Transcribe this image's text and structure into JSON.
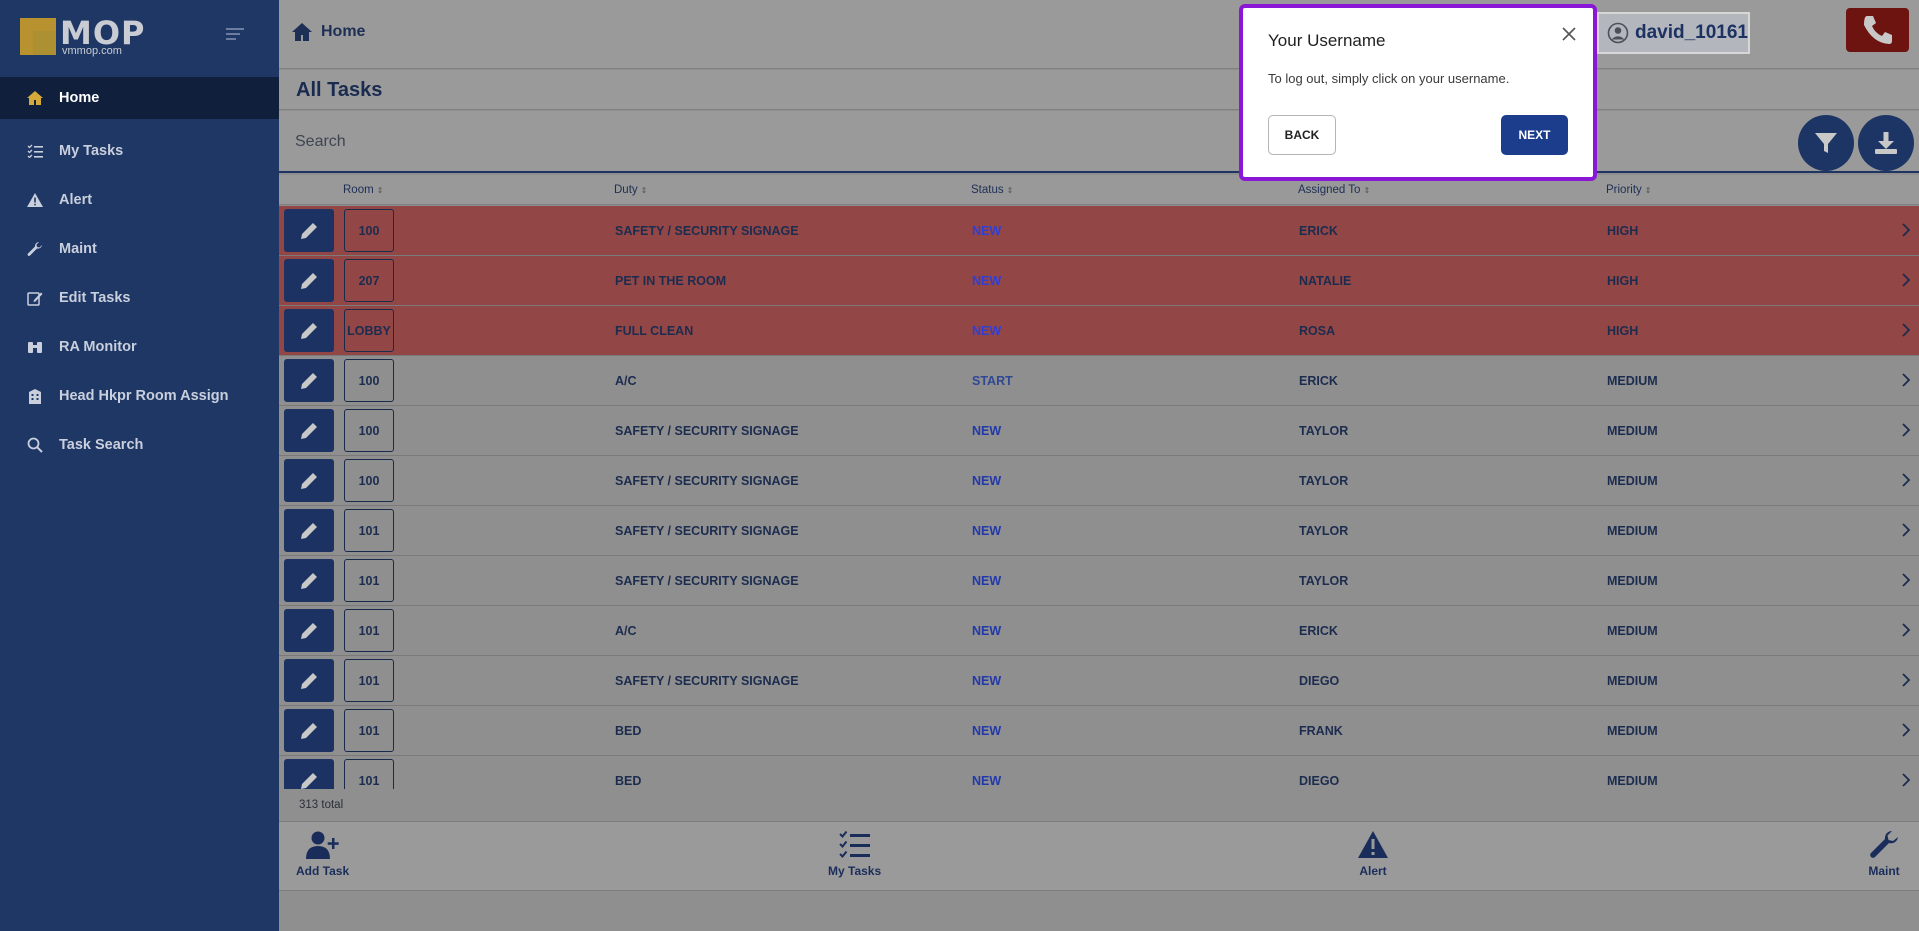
{
  "sidebar": {
    "logo_text": "MOP",
    "logo_sub": "vmmop.com",
    "items": [
      {
        "label": "Home",
        "icon": "home-icon"
      },
      {
        "label": "My Tasks",
        "icon": "list-check-icon"
      },
      {
        "label": "Alert",
        "icon": "warning-icon"
      },
      {
        "label": "Maint",
        "icon": "wrench-icon"
      },
      {
        "label": "Edit Tasks",
        "icon": "edit-icon"
      },
      {
        "label": "RA Monitor",
        "icon": "binoculars-icon"
      },
      {
        "label": "Head Hkpr Room Assign",
        "icon": "building-icon"
      },
      {
        "label": "Task Search",
        "icon": "search-icon"
      }
    ]
  },
  "header": {
    "breadcrumb": "Home",
    "username": "david_10161"
  },
  "page": {
    "title": "All Tasks",
    "search_label": "Search"
  },
  "table": {
    "columns": {
      "room": "Room",
      "duty": "Duty",
      "status": "Status",
      "assigned": "Assigned To",
      "priority": "Priority"
    },
    "rows": [
      {
        "room": "100",
        "duty": "SAFETY / SECURITY SIGNAGE",
        "status": "NEW",
        "assigned": "ERICK",
        "priority": "HIGH"
      },
      {
        "room": "207",
        "duty": "PET IN THE ROOM",
        "status": "NEW",
        "assigned": "NATALIE",
        "priority": "HIGH"
      },
      {
        "room": "LOBBY",
        "duty": "FULL CLEAN",
        "status": "NEW",
        "assigned": "ROSA",
        "priority": "HIGH"
      },
      {
        "room": "100",
        "duty": "A/C",
        "status": "START",
        "assigned": "ERICK",
        "priority": "MEDIUM"
      },
      {
        "room": "100",
        "duty": "SAFETY / SECURITY SIGNAGE",
        "status": "NEW",
        "assigned": "TAYLOR",
        "priority": "MEDIUM"
      },
      {
        "room": "100",
        "duty": "SAFETY / SECURITY SIGNAGE",
        "status": "NEW",
        "assigned": "TAYLOR",
        "priority": "MEDIUM"
      },
      {
        "room": "101",
        "duty": "SAFETY / SECURITY SIGNAGE",
        "status": "NEW",
        "assigned": "TAYLOR",
        "priority": "MEDIUM"
      },
      {
        "room": "101",
        "duty": "SAFETY / SECURITY SIGNAGE",
        "status": "NEW",
        "assigned": "TAYLOR",
        "priority": "MEDIUM"
      },
      {
        "room": "101",
        "duty": "A/C",
        "status": "NEW",
        "assigned": "ERICK",
        "priority": "MEDIUM"
      },
      {
        "room": "101",
        "duty": "SAFETY / SECURITY SIGNAGE",
        "status": "NEW",
        "assigned": "DIEGO",
        "priority": "MEDIUM"
      },
      {
        "room": "101",
        "duty": "BED",
        "status": "NEW",
        "assigned": "FRANK",
        "priority": "MEDIUM"
      },
      {
        "room": "101",
        "duty": "BED",
        "status": "NEW",
        "assigned": "DIEGO",
        "priority": "MEDIUM"
      }
    ],
    "total": "313 total"
  },
  "bottom_nav": {
    "add_task": "Add Task",
    "my_tasks": "My Tasks",
    "alert": "Alert",
    "maint": "Maint"
  },
  "popover": {
    "title": "Your Username",
    "text": "To log out, simply click on your username.",
    "back": "BACK",
    "next": "NEXT"
  },
  "colors": {
    "sidebar_bg": "#1e3764",
    "accent_gold": "#d4a93a",
    "high_row": "#934646",
    "popover_border": "#8b17d6",
    "next_button": "#1b3d8c",
    "phone_button": "#6e1410"
  }
}
